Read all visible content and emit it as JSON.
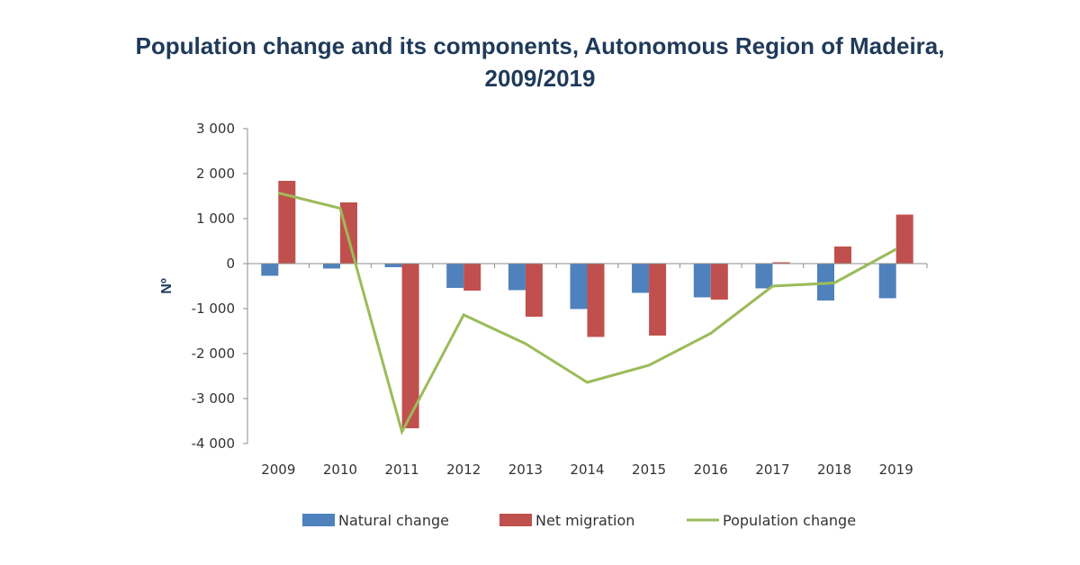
{
  "chart_data": {
    "type": "bar",
    "title_line1": "Population change and its components, Autonomous Region of Madeira,",
    "title_line2": "2009/2019",
    "ylabel": "Nº",
    "ylim": [
      -4000,
      3000
    ],
    "yticks": [
      3000,
      2000,
      1000,
      0,
      -1000,
      -2000,
      -3000,
      -4000
    ],
    "ytick_labels": [
      "3 000",
      "2 000",
      "1 000",
      "0",
      "-1 000",
      "-2 000",
      "-3 000",
      "-4 000"
    ],
    "categories": [
      "2009",
      "2010",
      "2011",
      "2012",
      "2013",
      "2014",
      "2015",
      "2016",
      "2017",
      "2018",
      "2019"
    ],
    "series": [
      {
        "name": "Natural change",
        "kind": "bar",
        "color": "#4f81bd",
        "values": [
          -270,
          -110,
          -80,
          -540,
          -590,
          -1010,
          -650,
          -750,
          -550,
          -820,
          -770
        ]
      },
      {
        "name": "Net migration",
        "kind": "bar",
        "color": "#c0504d",
        "values": [
          1840,
          1360,
          -3660,
          -600,
          -1180,
          -1630,
          -1600,
          -800,
          30,
          380,
          1090
        ]
      },
      {
        "name": "Population change",
        "kind": "line",
        "color": "#9bbb59",
        "values": [
          1570,
          1230,
          -3740,
          -1140,
          -1780,
          -2640,
          -2260,
          -1550,
          -500,
          -430,
          320
        ]
      }
    ],
    "grid": false,
    "legend_position": "bottom"
  }
}
